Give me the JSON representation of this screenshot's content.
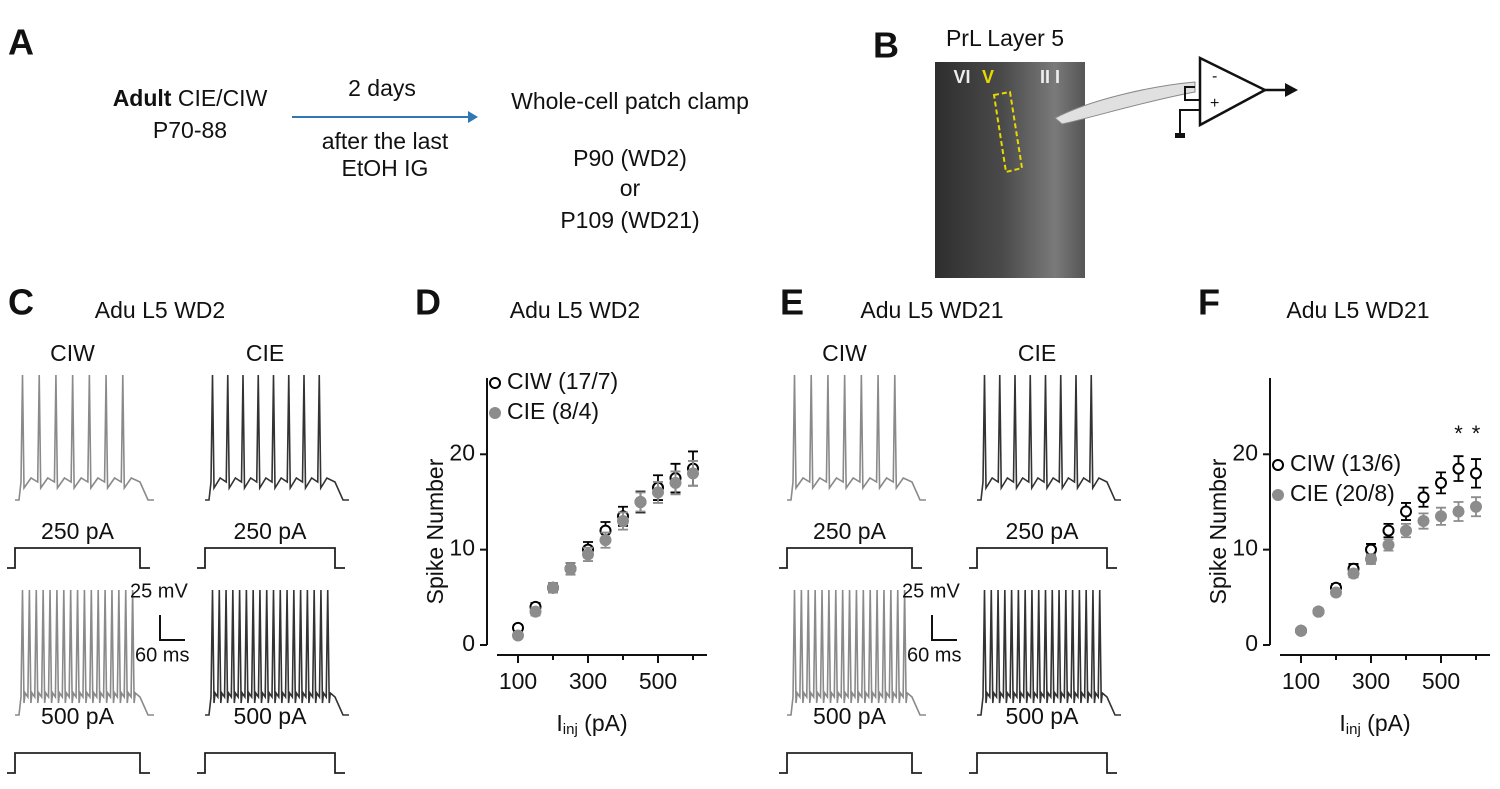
{
  "panel_a": {
    "letter": "A",
    "left_bold": "Adult",
    "left_rest": "CIE/CIW",
    "left_age": "P70-88",
    "arrow_top": "2 days",
    "arrow_bottom": [
      "after the last",
      "EtOH IG"
    ],
    "right": [
      "Whole-cell patch clamp",
      "P90 (WD2)",
      "or",
      "P109 (WD21)"
    ]
  },
  "panel_b": {
    "letter": "B",
    "title": "PrL Layer 5",
    "layers": [
      "VI",
      "V",
      "II I"
    ]
  },
  "panel_c": {
    "letter": "C",
    "title": "Adu L5 WD2",
    "groups": [
      "CIW",
      "CIE"
    ],
    "currents": [
      "250 pA",
      "500 pA"
    ],
    "scale_v": "25 mV",
    "scale_t": "60 ms"
  },
  "panel_e": {
    "letter": "E",
    "title": "Adu L5 WD21",
    "groups": [
      "CIW",
      "CIE"
    ],
    "currents": [
      "250 pA",
      "500 pA"
    ],
    "scale_v": "25 mV",
    "scale_t": "60 ms"
  },
  "chart_data": [
    {
      "type": "scatter",
      "letter": "D",
      "title": "Adu L5 WD2",
      "ylabel": "Spike Number",
      "xlabel_parts": [
        "I",
        "inj",
        " (pA)"
      ],
      "x": [
        100,
        150,
        200,
        250,
        300,
        350,
        400,
        450,
        500,
        550,
        600
      ],
      "xlim": [
        40,
        640
      ],
      "ylim": [
        0,
        28
      ],
      "xticks": [
        100,
        300,
        500
      ],
      "xminor_ticks": [
        200,
        400,
        600
      ],
      "yticks": [
        0,
        10,
        20
      ],
      "series": [
        {
          "name": "CIW (17/7)",
          "color": "#000000",
          "marker": "open",
          "values": [
            1.8,
            4,
            6,
            8,
            10,
            12,
            13.5,
            15,
            16.5,
            17.5,
            18.5
          ],
          "errors": [
            0.3,
            0.4,
            0.5,
            0.6,
            0.8,
            0.9,
            1,
            1.1,
            1.3,
            1.5,
            1.8
          ]
        },
        {
          "name": "CIE (8/4)",
          "color": "#8c8c8c",
          "marker": "filled",
          "values": [
            1,
            3.5,
            6,
            8,
            9.5,
            11,
            13,
            15,
            16,
            17,
            18
          ],
          "errors": [
            0.3,
            0.4,
            0.5,
            0.6,
            0.7,
            0.8,
            0.9,
            1,
            1.1,
            1.2,
            1.3
          ]
        }
      ]
    },
    {
      "type": "scatter",
      "letter": "F",
      "title": "Adu L5 WD21",
      "ylabel": "Spike Number",
      "xlabel_parts": [
        "I",
        "inj",
        " (pA)"
      ],
      "x": [
        100,
        150,
        200,
        250,
        300,
        350,
        400,
        450,
        500,
        550,
        600
      ],
      "xlim": [
        40,
        640
      ],
      "ylim": [
        0,
        28
      ],
      "xticks": [
        100,
        300,
        500
      ],
      "xminor_ticks": [
        200,
        400,
        600
      ],
      "yticks": [
        0,
        10,
        20
      ],
      "series": [
        {
          "name": "CIW (13/6)",
          "color": "#000000",
          "marker": "open",
          "values": [
            1.5,
            3.5,
            6,
            8,
            10,
            12,
            14,
            15.5,
            17,
            18.5,
            18
          ],
          "errors": [
            0.2,
            0.3,
            0.4,
            0.5,
            0.6,
            0.7,
            0.9,
            1,
            1.1,
            1.3,
            1.5
          ]
        },
        {
          "name": "CIE (20/8)",
          "color": "#8c8c8c",
          "marker": "filled",
          "values": [
            1.5,
            3.5,
            5.5,
            7.5,
            9,
            10.5,
            12,
            13,
            13.5,
            14,
            14.5
          ],
          "errors": [
            0.2,
            0.3,
            0.3,
            0.4,
            0.5,
            0.6,
            0.7,
            0.8,
            0.9,
            1,
            1
          ]
        }
      ],
      "annotations": [
        {
          "text": "*",
          "x": 550,
          "y": 22
        },
        {
          "text": "*",
          "x": 600,
          "y": 22
        }
      ]
    }
  ]
}
